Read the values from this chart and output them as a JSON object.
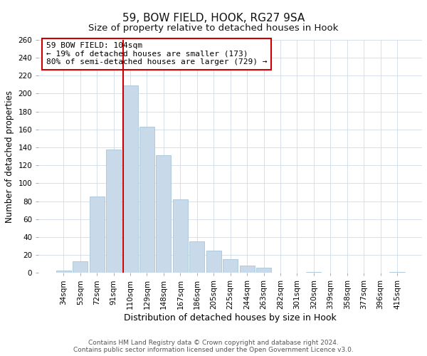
{
  "title": "59, BOW FIELD, HOOK, RG27 9SA",
  "subtitle": "Size of property relative to detached houses in Hook",
  "xlabel": "Distribution of detached houses by size in Hook",
  "ylabel": "Number of detached properties",
  "bar_color": "#c8daea",
  "bar_edge_color": "#a8c4d8",
  "categories": [
    "34sqm",
    "53sqm",
    "72sqm",
    "91sqm",
    "110sqm",
    "129sqm",
    "148sqm",
    "167sqm",
    "186sqm",
    "205sqm",
    "225sqm",
    "244sqm",
    "263sqm",
    "282sqm",
    "301sqm",
    "320sqm",
    "339sqm",
    "358sqm",
    "377sqm",
    "396sqm",
    "415sqm"
  ],
  "values": [
    3,
    13,
    85,
    138,
    209,
    163,
    131,
    82,
    35,
    25,
    15,
    8,
    6,
    0,
    0,
    1,
    0,
    0,
    0,
    0,
    1
  ],
  "ylim": [
    0,
    260
  ],
  "yticks": [
    0,
    20,
    40,
    60,
    80,
    100,
    120,
    140,
    160,
    180,
    200,
    220,
    240,
    260
  ],
  "vline_idx": 4,
  "vline_color": "#cc0000",
  "annotation_title": "59 BOW FIELD: 104sqm",
  "annotation_line1": "← 19% of detached houses are smaller (173)",
  "annotation_line2": "80% of semi-detached houses are larger (729) →",
  "annotation_box_color": "#ffffff",
  "annotation_box_edge": "#cc0000",
  "footer_line1": "Contains HM Land Registry data © Crown copyright and database right 2024.",
  "footer_line2": "Contains public sector information licensed under the Open Government Licence v3.0.",
  "bg_color": "#ffffff",
  "grid_color": "#d0dce8",
  "title_fontsize": 11,
  "subtitle_fontsize": 9.5,
  "xlabel_fontsize": 9,
  "ylabel_fontsize": 8.5,
  "tick_fontsize": 7.5,
  "annotation_fontsize": 8,
  "footer_fontsize": 6.5
}
